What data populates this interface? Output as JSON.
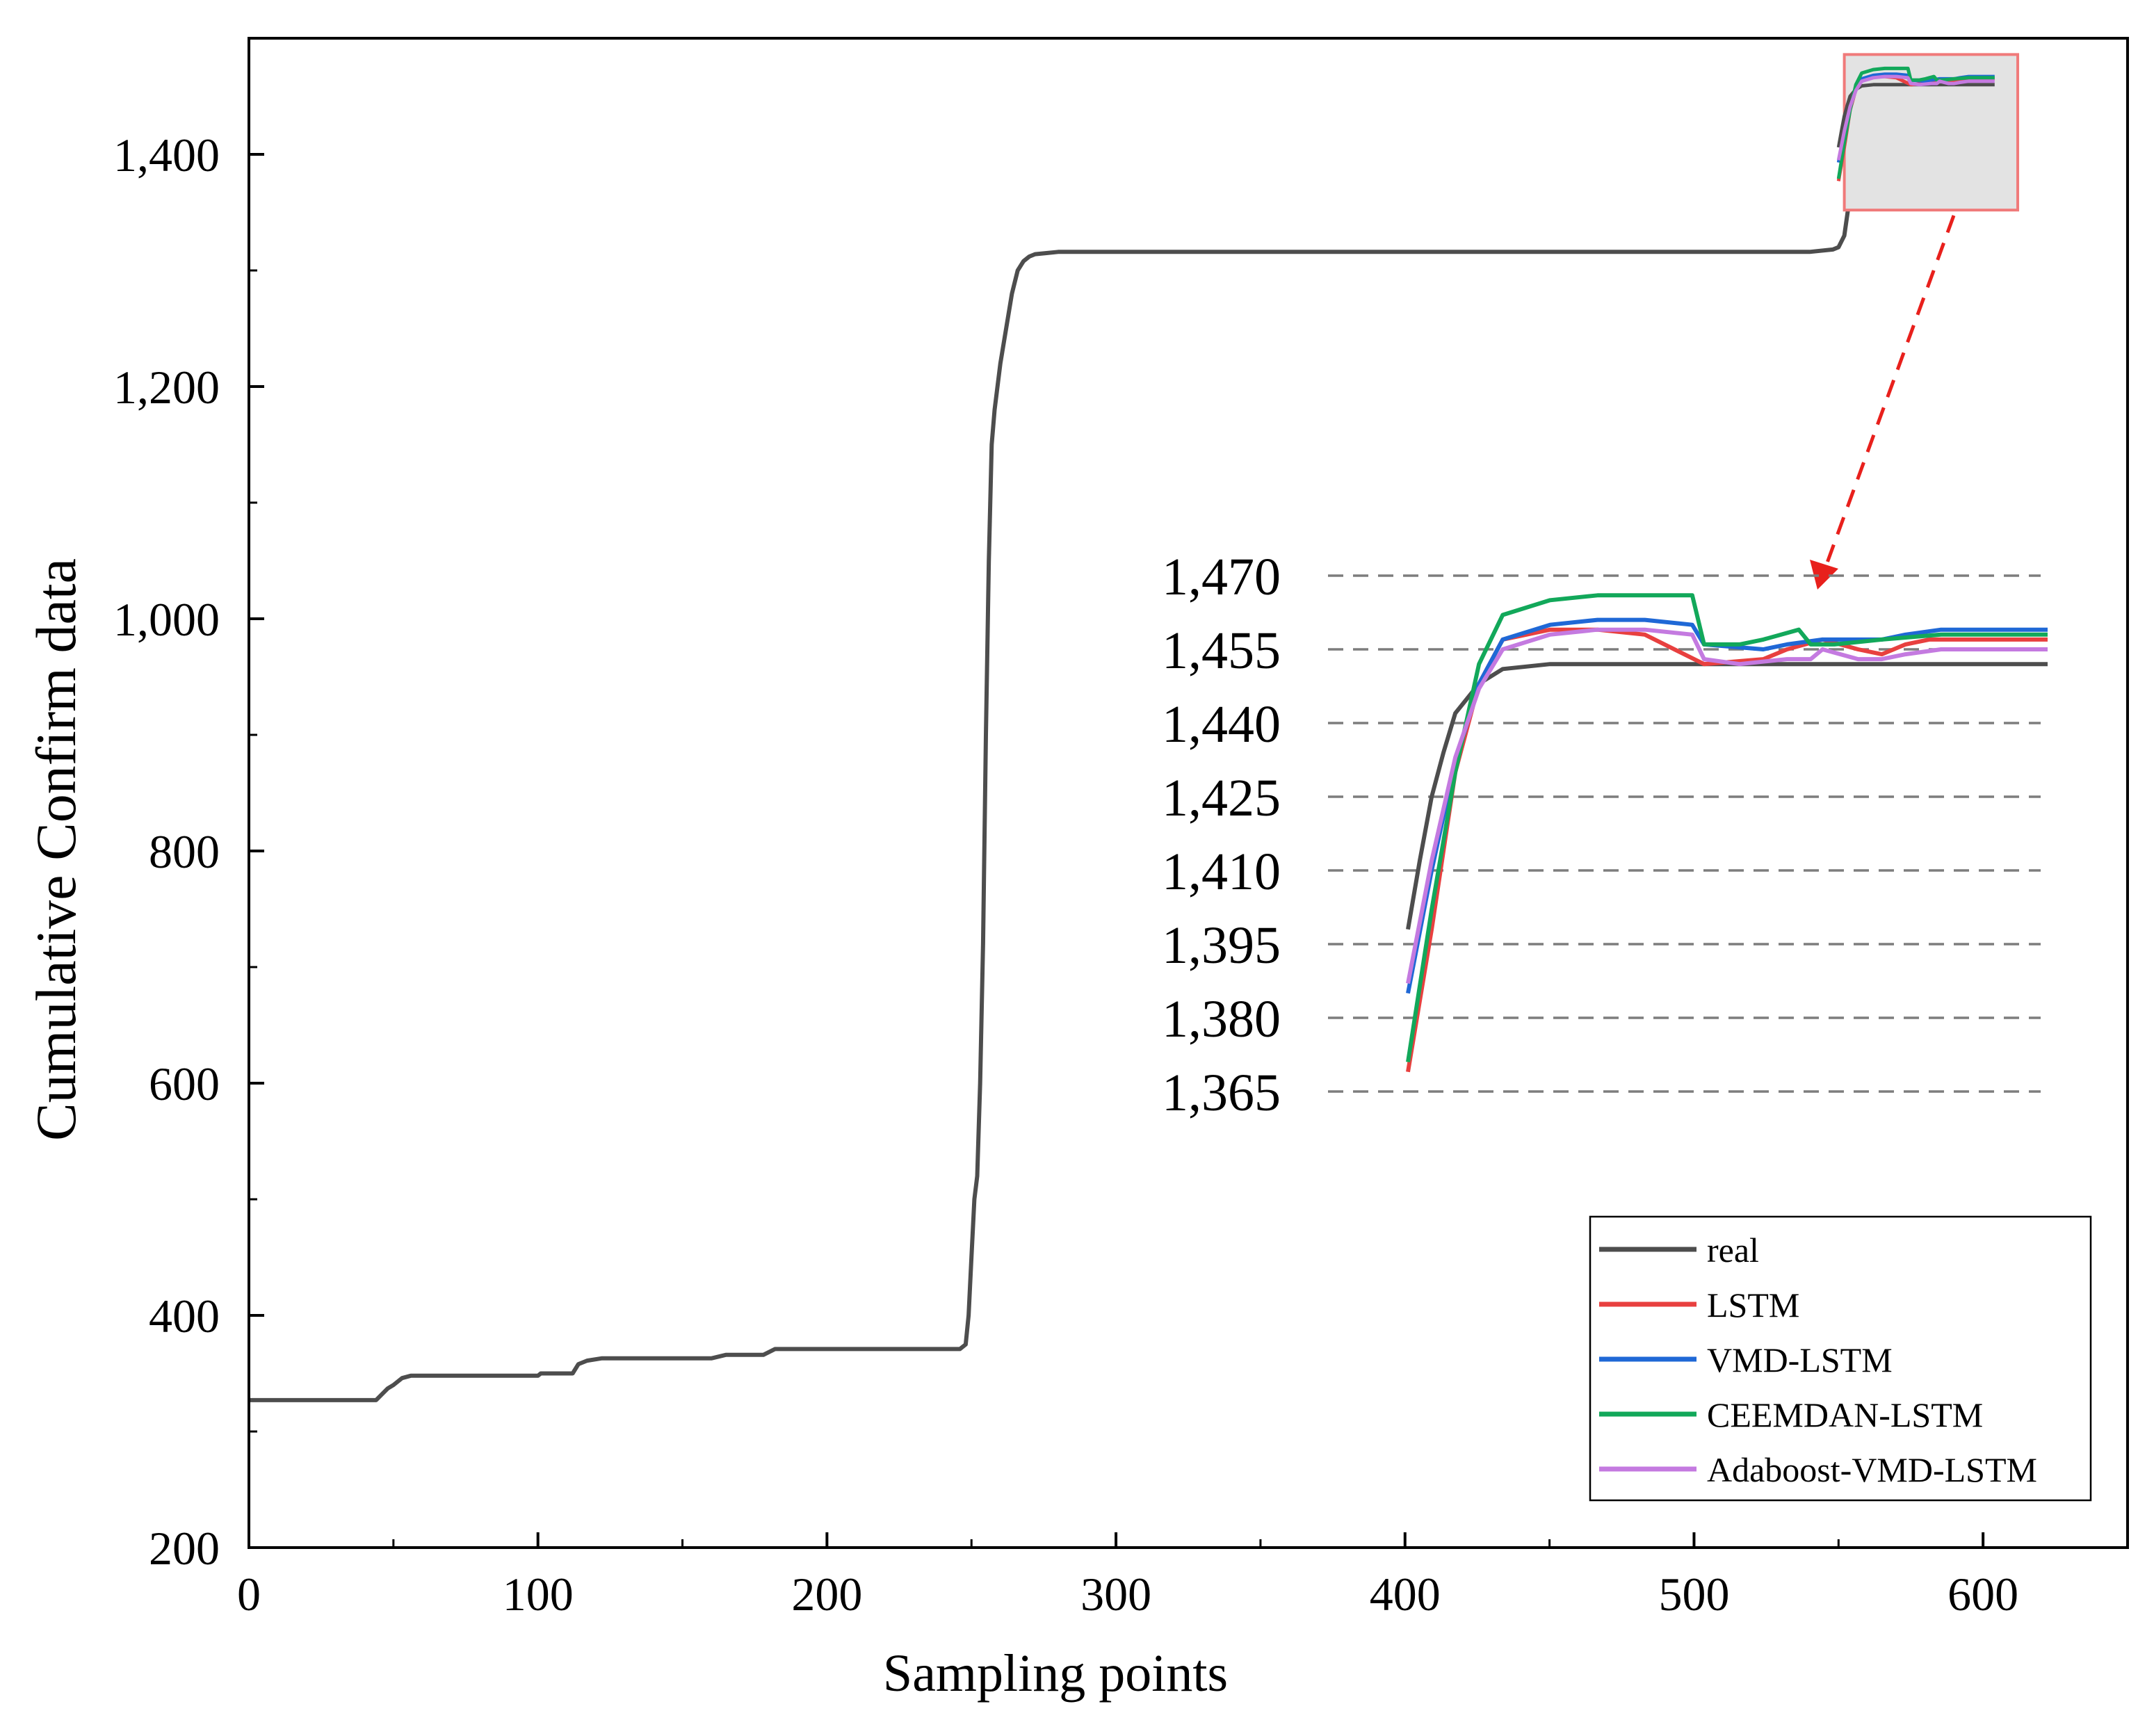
{
  "chart_data": {
    "type": "line",
    "xlabel": "Sampling points",
    "ylabel": "Cumulative Confirm data",
    "xlim": [
      0,
      650
    ],
    "ylim": [
      200,
      1500
    ],
    "xticks": [
      "0",
      "100",
      "200",
      "300",
      "400",
      "500",
      "600"
    ],
    "yticks": [
      "200",
      "400",
      "600",
      "800",
      "1,000",
      "1,200",
      "1,400"
    ],
    "legend_position": "bottom-right",
    "legend": [
      "real",
      "LSTM",
      "VMD-LSTM",
      "CEEMDAN-LSTM",
      "Adaboost-VMD-LSTM"
    ],
    "colors": {
      "real": "#4d4d4d",
      "LSTM": "#e8403f",
      "VMD-LSTM": "#1f68d6",
      "CEEMDAN-LSTM": "#12a85a",
      "Adaboost-VMD-LSTM": "#c47ae0",
      "zoom_box": "#f07a7a",
      "arrow": "#e8201c"
    },
    "series": [
      {
        "name": "real",
        "x": [
          0,
          44,
          48,
          50,
          53,
          56,
          100,
          101,
          112,
          114,
          117,
          122,
          160,
          165,
          178,
          182,
          246,
          248,
          249,
          250,
          251,
          252,
          253,
          254,
          255,
          256,
          257,
          258,
          260,
          262,
          264,
          266,
          268,
          270,
          272,
          276,
          280,
          540,
          548,
          550,
          552,
          554,
          556,
          560,
          564,
          568,
          572,
          576,
          580,
          585,
          590,
          600,
          610
        ],
        "y": [
          327,
          327,
          337,
          340,
          346,
          348,
          348,
          350,
          350,
          358,
          361,
          363,
          363,
          366,
          366,
          371,
          371,
          375,
          400,
          450,
          500,
          520,
          600,
          720,
          900,
          1050,
          1150,
          1180,
          1220,
          1250,
          1280,
          1300,
          1308,
          1312,
          1314,
          1315,
          1316,
          1316,
          1318,
          1320,
          1330,
          1365,
          1395,
          1430,
          1450,
          1456,
          1456,
          1456,
          1456,
          1456,
          1456,
          1456,
          1456
        ]
      }
    ],
    "inset": {
      "title": "",
      "yticks": [
        "1,470",
        "1,455",
        "1,440",
        "1,425",
        "1,410",
        "1,395",
        "1,380",
        "1,365"
      ],
      "ylim": [
        1365,
        1470
      ],
      "xlim": [
        550,
        612
      ],
      "series": [
        {
          "name": "real",
          "x": [
            550,
            551,
            552,
            553,
            554,
            556,
            558,
            562,
            566,
            575,
            585,
            595,
            600,
            604
          ],
          "y": [
            1398,
            1412,
            1425,
            1434,
            1442,
            1448,
            1451,
            1452,
            1452,
            1452,
            1452,
            1452,
            1452,
            1452
          ]
        },
        {
          "name": "LSTM",
          "x": [
            550,
            552,
            554,
            556,
            558,
            562,
            566,
            570,
            575,
            580,
            582,
            585,
            588,
            590,
            592,
            594,
            597,
            600,
            604
          ],
          "y": [
            1369,
            1398,
            1430,
            1448,
            1457,
            1459,
            1459,
            1458,
            1452,
            1453,
            1455,
            1457,
            1455,
            1454,
            1456,
            1457,
            1457,
            1457,
            1457
          ]
        },
        {
          "name": "VMD-LSTM",
          "x": [
            550,
            552,
            554,
            556,
            558,
            562,
            566,
            570,
            574,
            575,
            580,
            582,
            585,
            590,
            592,
            595,
            600,
            604
          ],
          "y": [
            1385,
            1410,
            1432,
            1448,
            1457,
            1460,
            1461,
            1461,
            1460,
            1456,
            1455,
            1456,
            1457,
            1457,
            1458,
            1459,
            1459,
            1459
          ]
        },
        {
          "name": "CEEMDAN-LSTM",
          "x": [
            550,
            552,
            554,
            556,
            558,
            562,
            566,
            570,
            574,
            575,
            578,
            580,
            583,
            584,
            586,
            590,
            595,
            600,
            604
          ],
          "y": [
            1371,
            1402,
            1430,
            1452,
            1462,
            1465,
            1466,
            1466,
            1466,
            1456,
            1456,
            1457,
            1459,
            1456,
            1456,
            1457,
            1458,
            1458,
            1458
          ]
        },
        {
          "name": "Adaboost-VMD-LSTM",
          "x": [
            550,
            552,
            554,
            556,
            558,
            562,
            566,
            570,
            574,
            575,
            578,
            582,
            584,
            585,
            588,
            590,
            592,
            595,
            600,
            604
          ],
          "y": [
            1387,
            1412,
            1433,
            1447,
            1455,
            1458,
            1459,
            1459,
            1458,
            1453,
            1452,
            1453,
            1453,
            1455,
            1453,
            1453,
            1454,
            1455,
            1455,
            1455
          ]
        }
      ]
    }
  }
}
